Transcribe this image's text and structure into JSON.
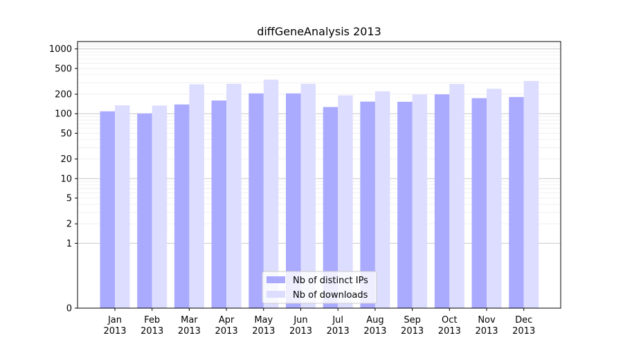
{
  "chart_data": {
    "type": "bar",
    "title": "diffGeneAnalysis 2013",
    "xlabel": "",
    "ylabel": "",
    "y_scale": "symlog",
    "ylim": [
      0,
      1300
    ],
    "y_ticks": [
      0,
      1,
      2,
      5,
      10,
      20,
      50,
      100,
      200,
      500,
      1000
    ],
    "categories": [
      [
        "Jan",
        "2013"
      ],
      [
        "Feb",
        "2013"
      ],
      [
        "Mar",
        "2013"
      ],
      [
        "Apr",
        "2013"
      ],
      [
        "May",
        "2013"
      ],
      [
        "Jun",
        "2013"
      ],
      [
        "Jul",
        "2013"
      ],
      [
        "Aug",
        "2013"
      ],
      [
        "Sep",
        "2013"
      ],
      [
        "Oct",
        "2013"
      ],
      [
        "Nov",
        "2013"
      ],
      [
        "Dec",
        "2013"
      ]
    ],
    "series": [
      {
        "name": "Nb of distinct IPs",
        "color": "#aaaaff",
        "values": [
          109,
          101,
          139,
          160,
          206,
          206,
          127,
          154,
          153,
          199,
          174,
          181
        ]
      },
      {
        "name": "Nb of downloads",
        "color": "#ddddff",
        "values": [
          135,
          134,
          285,
          290,
          335,
          290,
          192,
          222,
          198,
          288,
          243,
          320
        ]
      }
    ],
    "grid": true,
    "legend_position": "bottom-center"
  }
}
